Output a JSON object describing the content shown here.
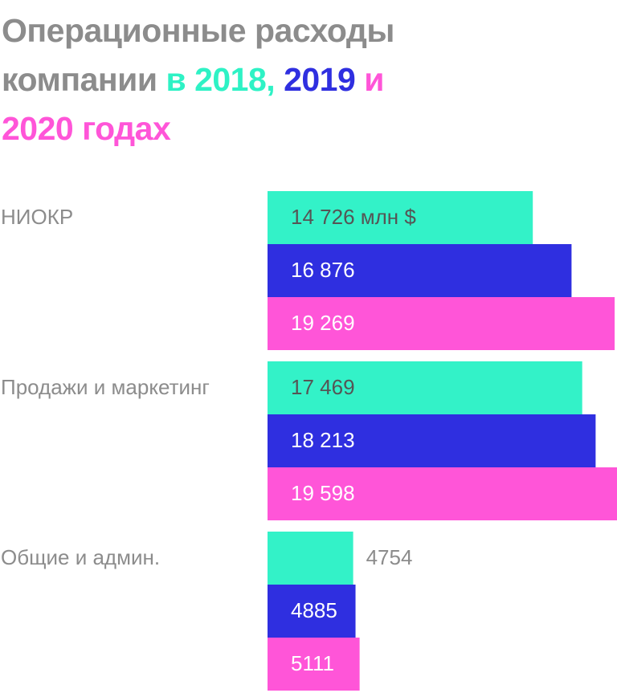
{
  "chart_data": {
    "type": "bar",
    "orientation": "horizontal",
    "title_parts": [
      {
        "text": "Операционные расходы компании",
        "color": "#8c8c8c"
      },
      {
        "text": "в 2018,",
        "color": "#2ef2c5"
      },
      {
        "text": "2019",
        "color": "#2f2fe0"
      },
      {
        "text": "и 2020 годах",
        "color": "#ff55d8"
      }
    ],
    "categories": [
      "НИОКР",
      "Продажи и маркетинг",
      "Общие и админ."
    ],
    "series": [
      {
        "color": "#33f2c8",
        "values": [
          14726,
          17469,
          4754
        ],
        "value_labels": [
          "14 726 млн $",
          "17 469",
          "4754"
        ],
        "label_color": "#555555"
      },
      {
        "color": "#2f2fe0",
        "values": [
          16876,
          18213,
          4885
        ],
        "value_labels": [
          "16 876",
          "18 213",
          "4885"
        ],
        "label_color": "#ffffff"
      },
      {
        "color": "#ff55d8",
        "values": [
          19269,
          19598,
          5111
        ],
        "value_labels": [
          "19 269",
          "19 598",
          "5111"
        ],
        "label_color": "#ffffff"
      }
    ]
  }
}
